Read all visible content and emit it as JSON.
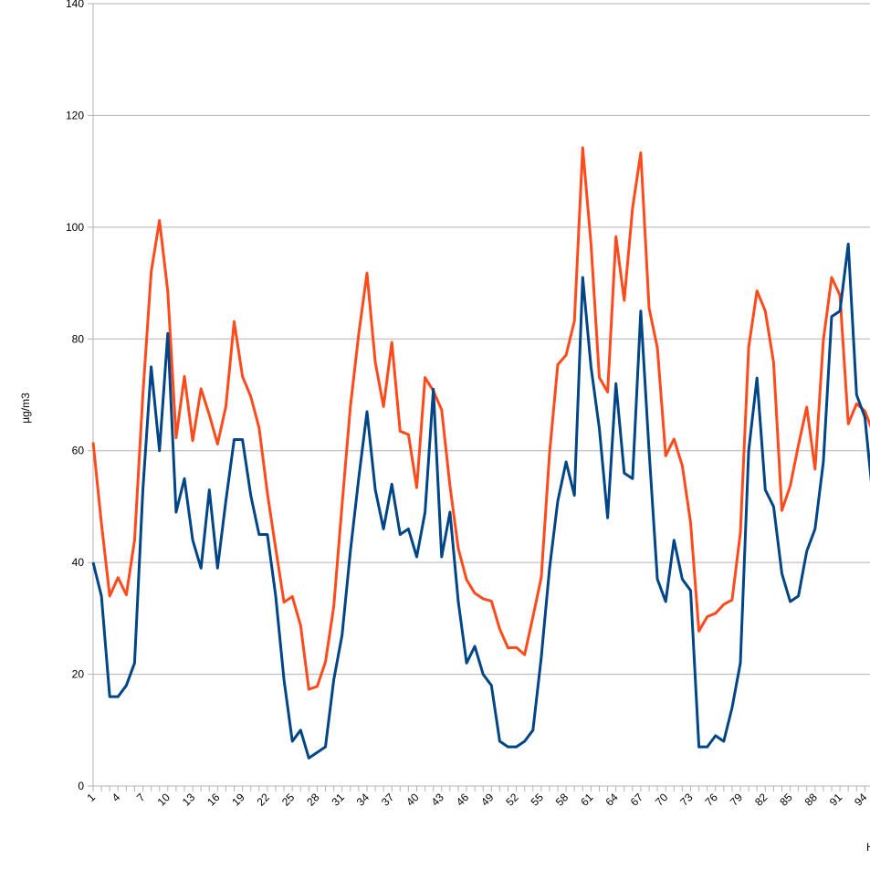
{
  "chart_data": {
    "type": "line",
    "ylabel": "µg/m3",
    "xlabel": "H",
    "ylim": [
      0,
      140
    ],
    "yticks": [
      0,
      20,
      40,
      60,
      80,
      100,
      120,
      140
    ],
    "x_tick_labels": [
      "1",
      "4",
      "7",
      "10",
      "13",
      "16",
      "19",
      "22",
      "25",
      "28",
      "31",
      "34",
      "37",
      "40",
      "43",
      "46",
      "49",
      "52",
      "55",
      "58",
      "61",
      "64",
      "67",
      "70",
      "73",
      "76",
      "79",
      "82",
      "85",
      "88",
      "91",
      "94"
    ],
    "grid": "horizontal",
    "series": [
      {
        "color": "#ff4a1c",
        "values": [
          61.5,
          47,
          34,
          37.3,
          34.2,
          44,
          70,
          92,
          101.2,
          88.5,
          62.3,
          73.3,
          61.8,
          71.1,
          66.4,
          61.2,
          67.9,
          83.1,
          73.3,
          69.7,
          64.1,
          52.4,
          42.5,
          32.9,
          33.9,
          28.7,
          17.3,
          17.8,
          22.2,
          32.1,
          50.3,
          67.9,
          80.8,
          91.8,
          75.8,
          67.9,
          79.4,
          63.5,
          62.9,
          53.4,
          73.1,
          70.7,
          67.3,
          53.7,
          42.5,
          36.9,
          34.5,
          33.5,
          33.1,
          28.1,
          24.7,
          24.8,
          23.5,
          30.3,
          37.3,
          59.6,
          75.4,
          77.1,
          83.2,
          114.2,
          97,
          73.1,
          70.5,
          98.3,
          86.9,
          103.4,
          113.3,
          85.5,
          78.4,
          59.1,
          62.1,
          57.3,
          47.1,
          27.7,
          30.3,
          30.9,
          32.5,
          33.3,
          45.3,
          78.5,
          88.6,
          85,
          75.8,
          49.3,
          53.7,
          61,
          67.8,
          56.7,
          79.8,
          91,
          87.8,
          64.8,
          68.4,
          67.1,
          63.2
        ]
      },
      {
        "color": "#004586",
        "values": [
          40,
          34,
          16,
          16,
          18,
          22,
          53,
          75,
          60,
          81,
          49,
          55,
          44,
          39,
          53,
          39,
          51,
          62,
          62,
          52,
          45,
          45,
          34,
          19,
          8,
          10,
          5,
          6,
          7,
          19,
          27,
          42,
          55,
          67,
          53,
          46,
          54,
          45,
          46,
          41,
          49,
          71,
          41,
          49,
          33,
          22,
          25,
          20,
          18,
          8,
          7,
          7,
          8,
          10,
          23,
          39,
          51,
          58,
          52,
          91,
          75,
          64,
          48,
          72,
          56,
          55,
          85,
          60,
          37,
          33,
          44,
          37,
          35,
          7,
          7,
          9,
          8,
          14,
          22,
          60,
          73,
          53,
          50,
          38,
          33,
          34,
          42,
          46,
          58,
          84,
          85,
          97,
          70,
          66,
          51
        ]
      }
    ]
  }
}
